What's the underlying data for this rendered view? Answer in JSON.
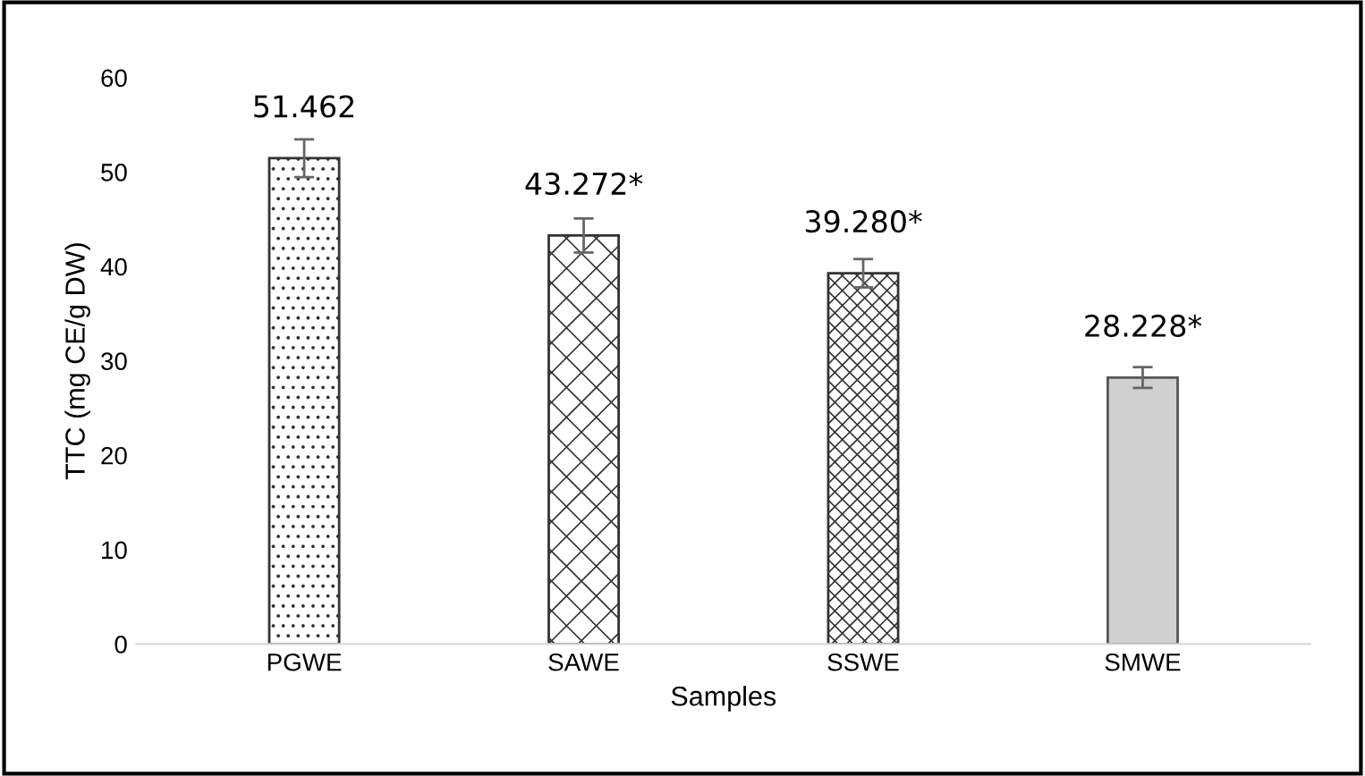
{
  "chart_data": {
    "type": "bar",
    "xlabel": "Samples",
    "ylabel": "TTC (mg CE/g DW)",
    "categories": [
      "PGWE",
      "SAWE",
      "SSWE",
      "SMWE"
    ],
    "values": [
      51.462,
      43.272,
      39.28,
      28.228
    ],
    "errors": [
      2,
      1.8,
      1.5,
      1.1
    ],
    "value_labels": [
      "51.462",
      "43.272*",
      "39.280*",
      "28.228*"
    ],
    "colors": [
      "#333333",
      "#333333",
      "#333333",
      "#d0d0d0"
    ],
    "ylim": [
      0,
      60
    ],
    "yticks": [
      0,
      10,
      20,
      30,
      40,
      50,
      60
    ],
    "grid": false
  }
}
